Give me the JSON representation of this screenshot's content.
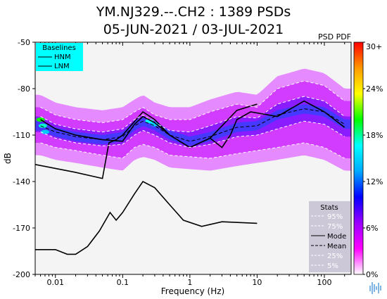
{
  "title_line1": "YM.NJ329.--.CH2 : 1389 PSDs",
  "title_line2": "05-JUN-2021 / 03-JUL-2021",
  "pdf_label": "PSD PDF",
  "colors": {
    "pdf_scale": [
      "#ffffff",
      "#ff00ff",
      "#9900ff",
      "#0000ff",
      "#00aaff",
      "#00ffff",
      "#00ff00",
      "#ffff00",
      "#ff9900",
      "#ff0000"
    ],
    "baselines_box": "#00ffff",
    "stats_box": "#ccc8d8"
  },
  "chart_data": {
    "type": "line",
    "xlabel": "Frequency (Hz)",
    "ylabel": "dB",
    "xscale": "log",
    "xlim": [
      0.005,
      250
    ],
    "ylim": [
      -200,
      -50
    ],
    "x_ticks": [
      0.01,
      0.1,
      1,
      10,
      100
    ],
    "x_tick_labels": [
      "0.01",
      "0.1",
      "1",
      "10",
      "100"
    ],
    "y_ticks": [
      -50,
      -80,
      -110,
      -140,
      -170,
      -200
    ],
    "y_tick_labels": [
      "-50",
      "-80",
      "-110",
      "-140",
      "-170",
      "-200"
    ],
    "colorbar_ticks": [
      0,
      6,
      12,
      18,
      24,
      30
    ],
    "colorbar_labels": [
      "0%",
      "6%",
      "12%",
      "18%",
      "24%",
      "30+"
    ],
    "baselines_legend": {
      "title": "Baselines",
      "entries": [
        "HNM",
        "LNM"
      ]
    },
    "stats_legend": {
      "title": "Stats",
      "entries": [
        "95%",
        "75%",
        "Mode",
        "Mean",
        "25%",
        "5%"
      ]
    },
    "series": [
      {
        "name": "HNM",
        "color": "#000000",
        "dash": "solid",
        "x": [
          0.005,
          0.0195,
          0.05,
          0.0625,
          0.08,
          0.1,
          0.2,
          0.3,
          0.5,
          1,
          2,
          5,
          10
        ],
        "y": [
          -129,
          -134,
          -138,
          -115,
          -113,
          -110,
          -95,
          -100,
          -110,
          -118,
          -112,
          -94,
          -90
        ]
      },
      {
        "name": "LNM",
        "color": "#000000",
        "dash": "solid",
        "x": [
          0.005,
          0.01,
          0.015,
          0.02,
          0.03,
          0.045,
          0.065,
          0.08,
          0.1,
          0.15,
          0.2,
          0.3,
          0.5,
          0.8,
          1.5,
          3,
          10
        ],
        "y": [
          -184,
          -184,
          -187,
          -187,
          -182,
          -172,
          -160,
          -165,
          -160,
          -148,
          -140,
          -144,
          -155,
          -165,
          -169,
          -166,
          -167
        ]
      },
      {
        "name": "95%",
        "color": "#ffffff",
        "dash": "4,3",
        "x": [
          0.006,
          0.01,
          0.02,
          0.05,
          0.1,
          0.15,
          0.2,
          0.3,
          0.5,
          1,
          2,
          5,
          10,
          20,
          50,
          100,
          200
        ],
        "y": [
          -92,
          -97,
          -100,
          -102,
          -100,
          -95,
          -92,
          -97,
          -100,
          -100,
          -95,
          -90,
          -92,
          -80,
          -75,
          -78,
          -88
        ]
      },
      {
        "name": "75%",
        "color": "#ffffff",
        "dash": "4,3",
        "x": [
          0.006,
          0.01,
          0.02,
          0.05,
          0.1,
          0.15,
          0.2,
          0.3,
          0.5,
          1,
          2,
          5,
          10,
          20,
          50,
          100,
          200
        ],
        "y": [
          -98,
          -103,
          -106,
          -108,
          -106,
          -100,
          -97,
          -102,
          -107,
          -108,
          -104,
          -98,
          -99,
          -90,
          -85,
          -88,
          -98
        ]
      },
      {
        "name": "Mode",
        "color": "#000000",
        "dash": "solid",
        "x": [
          0.006,
          0.01,
          0.02,
          0.05,
          0.1,
          0.15,
          0.2,
          0.3,
          0.5,
          1,
          2,
          3,
          4,
          5,
          8,
          20,
          50,
          100,
          200
        ],
        "y": [
          -100,
          -106,
          -110,
          -113,
          -114,
          -103,
          -98,
          -102,
          -110,
          -118,
          -112,
          -118,
          -110,
          -100,
          -95,
          -98,
          -88,
          -95,
          -105
        ]
      },
      {
        "name": "Mean",
        "color": "#000000",
        "dash": "5,3",
        "x": [
          0.006,
          0.01,
          0.02,
          0.05,
          0.1,
          0.15,
          0.2,
          0.3,
          0.5,
          1,
          2,
          5,
          10,
          20,
          50,
          100,
          200
        ],
        "y": [
          -104,
          -108,
          -111,
          -113,
          -111,
          -104,
          -101,
          -104,
          -110,
          -114,
          -111,
          -105,
          -104,
          -97,
          -93,
          -95,
          -103
        ]
      },
      {
        "name": "25%",
        "color": "#ffffff",
        "dash": "4,3",
        "x": [
          0.006,
          0.01,
          0.02,
          0.05,
          0.1,
          0.15,
          0.2,
          0.3,
          0.5,
          1,
          2,
          5,
          10,
          20,
          50,
          100,
          200
        ],
        "y": [
          -108,
          -112,
          -115,
          -117,
          -116,
          -110,
          -107,
          -110,
          -115,
          -118,
          -116,
          -111,
          -110,
          -106,
          -101,
          -103,
          -111
        ]
      },
      {
        "name": "5%",
        "color": "#ffffff",
        "dash": "4,3",
        "x": [
          0.006,
          0.01,
          0.02,
          0.05,
          0.1,
          0.15,
          0.2,
          0.3,
          0.5,
          1,
          2,
          5,
          10,
          20,
          50,
          100,
          200
        ],
        "y": [
          -115,
          -118,
          -120,
          -123,
          -125,
          -118,
          -116,
          -118,
          -123,
          -124,
          -125,
          -122,
          -120,
          -118,
          -115,
          -118,
          -125
        ]
      }
    ]
  }
}
